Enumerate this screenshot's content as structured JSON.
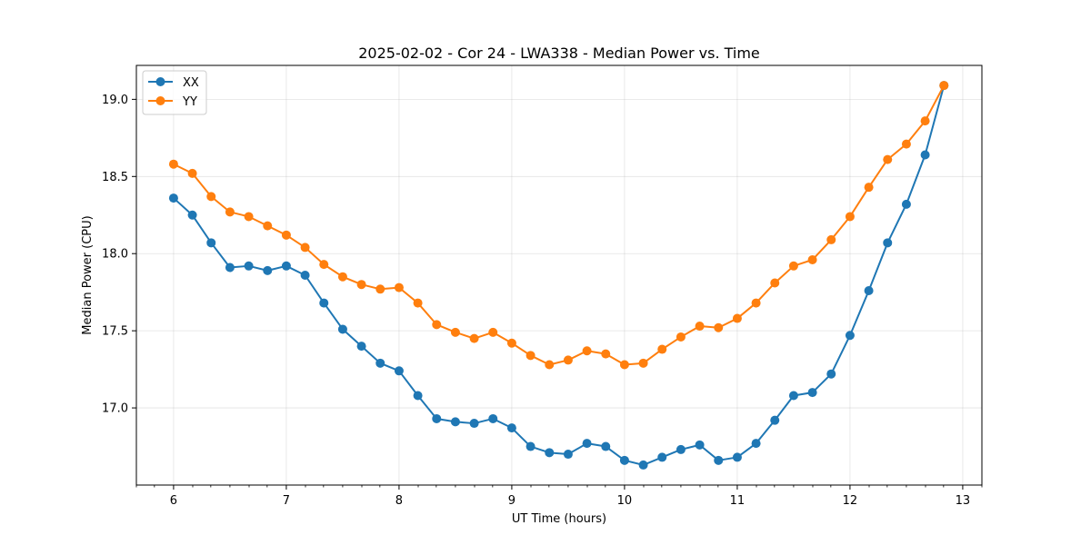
{
  "chart_data": {
    "type": "line",
    "title": "2025-02-02 - Cor 24 - LWA338 - Median Power vs. Time",
    "xlabel": "UT Time (hours)",
    "ylabel": "Median Power (CPU)",
    "xlim": [
      5.67,
      13.17
    ],
    "ylim": [
      16.5,
      19.22
    ],
    "xticks": [
      6,
      7,
      8,
      9,
      10,
      11,
      12,
      13
    ],
    "xtick_labels": [
      "6",
      "7",
      "8",
      "9",
      "10",
      "11",
      "12",
      "13"
    ],
    "minor_xticks": [
      5.67,
      5.83,
      6.17,
      6.33,
      6.5,
      6.67,
      6.83,
      7.17,
      7.33,
      7.5,
      7.67,
      7.83,
      8.17,
      8.33,
      8.5,
      8.67,
      8.83,
      9.17,
      9.33,
      9.5,
      9.67,
      9.83,
      10.17,
      10.33,
      10.5,
      10.67,
      10.83,
      11.17,
      11.33,
      11.5,
      11.67,
      11.83,
      12.17,
      12.33,
      12.5,
      12.67,
      12.83,
      13.17
    ],
    "yticks": [
      17.0,
      17.5,
      18.0,
      18.5,
      19.0
    ],
    "ytick_labels": [
      "17.0",
      "17.5",
      "18.0",
      "18.5",
      "19.0"
    ],
    "grid": true,
    "legend_position": "top-left",
    "x": [
      6.0,
      6.1667,
      6.3333,
      6.5,
      6.6667,
      6.8333,
      7.0,
      7.1667,
      7.3333,
      7.5,
      7.6667,
      7.8333,
      8.0,
      8.1667,
      8.3333,
      8.5,
      8.6667,
      8.8333,
      9.0,
      9.1667,
      9.3333,
      9.5,
      9.6667,
      9.8333,
      10.0,
      10.1667,
      10.3333,
      10.5,
      10.6667,
      10.8333,
      11.0,
      11.1667,
      11.3333,
      11.5,
      11.6667,
      11.8333,
      12.0,
      12.1667,
      12.3333,
      12.5,
      12.6667,
      12.8333
    ],
    "series": [
      {
        "name": "XX",
        "color": "#1f77b4",
        "values": [
          18.36,
          18.25,
          18.07,
          17.91,
          17.92,
          17.89,
          17.92,
          17.86,
          17.68,
          17.51,
          17.4,
          17.29,
          17.24,
          17.08,
          16.93,
          16.91,
          16.9,
          16.93,
          16.87,
          16.75,
          16.71,
          16.7,
          16.77,
          16.75,
          16.66,
          16.63,
          16.68,
          16.73,
          16.76,
          16.66,
          16.68,
          16.77,
          16.92,
          17.08,
          17.1,
          17.22,
          17.47,
          17.76,
          18.07,
          18.32,
          18.64,
          19.09
        ]
      },
      {
        "name": "YY",
        "color": "#ff7f0e",
        "values": [
          18.58,
          18.52,
          18.37,
          18.27,
          18.24,
          18.18,
          18.12,
          18.04,
          17.93,
          17.85,
          17.8,
          17.77,
          17.78,
          17.68,
          17.54,
          17.49,
          17.45,
          17.49,
          17.42,
          17.34,
          17.28,
          17.31,
          17.37,
          17.35,
          17.28,
          17.29,
          17.38,
          17.46,
          17.53,
          17.52,
          17.58,
          17.68,
          17.81,
          17.92,
          17.96,
          18.09,
          18.24,
          18.43,
          18.61,
          18.71,
          18.86,
          19.09
        ]
      }
    ]
  }
}
